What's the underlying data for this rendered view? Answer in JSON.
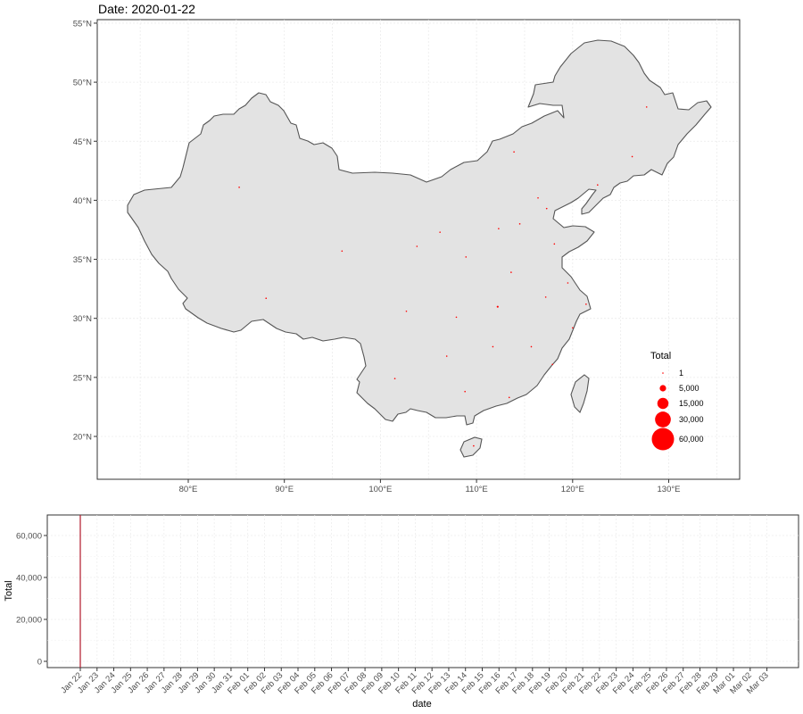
{
  "chart_data": [
    {
      "type": "scatter",
      "subtype": "bubble-map",
      "title": "Date: 2020-01-22",
      "x_ticks": [
        "80°E",
        "90°E",
        "100°E",
        "110°E",
        "120°E",
        "130°E"
      ],
      "y_ticks": [
        "20°N",
        "25°N",
        "30°N",
        "35°N",
        "40°N",
        "45°N",
        "50°N",
        "55°N"
      ],
      "xlim": [
        70,
        137
      ],
      "ylim": [
        16,
        55.5
      ],
      "grid": true,
      "legend": {
        "title": "Total",
        "position": "right",
        "items": [
          {
            "label": "1",
            "value": 1
          },
          {
            "label": "5,000",
            "value": 5000
          },
          {
            "label": "15,000",
            "value": 15000
          },
          {
            "label": "30,000",
            "value": 30000
          },
          {
            "label": "60,000",
            "value": 60000
          }
        ]
      },
      "points": [
        {
          "lon": 112.2,
          "lat": 30.98,
          "total": 444
        },
        {
          "lon": 121.4,
          "lat": 31.2,
          "total": 9
        },
        {
          "lon": 113.4,
          "lat": 23.3,
          "total": 26
        },
        {
          "lon": 120.0,
          "lat": 29.2,
          "total": 10
        },
        {
          "lon": 116.4,
          "lat": 40.2,
          "total": 14
        },
        {
          "lon": 117.3,
          "lat": 39.3,
          "total": 4
        },
        {
          "lon": 114.5,
          "lat": 38.0,
          "total": 1
        },
        {
          "lon": 112.3,
          "lat": 37.6,
          "total": 1
        },
        {
          "lon": 113.9,
          "lat": 44.1,
          "total": 1
        },
        {
          "lon": 122.6,
          "lat": 41.3,
          "total": 2
        },
        {
          "lon": 126.2,
          "lat": 43.7,
          "total": 1
        },
        {
          "lon": 127.7,
          "lat": 47.9,
          "total": 1
        },
        {
          "lon": 119.5,
          "lat": 33.0,
          "total": 1
        },
        {
          "lon": 117.2,
          "lat": 31.8,
          "total": 1
        },
        {
          "lon": 117.9,
          "lat": 26.1,
          "total": 1
        },
        {
          "lon": 115.7,
          "lat": 27.6,
          "total": 2
        },
        {
          "lon": 118.1,
          "lat": 36.3,
          "total": 2
        },
        {
          "lon": 113.6,
          "lat": 33.9,
          "total": 5
        },
        {
          "lon": 111.7,
          "lat": 27.6,
          "total": 4
        },
        {
          "lon": 108.8,
          "lat": 23.8,
          "total": 2
        },
        {
          "lon": 109.7,
          "lat": 19.2,
          "total": 4
        },
        {
          "lon": 107.9,
          "lat": 30.1,
          "total": 6
        },
        {
          "lon": 102.7,
          "lat": 30.6,
          "total": 5
        },
        {
          "lon": 106.9,
          "lat": 26.8,
          "total": 1
        },
        {
          "lon": 101.5,
          "lat": 24.9,
          "total": 1
        },
        {
          "lon": 88.1,
          "lat": 31.7,
          "total": 1
        },
        {
          "lon": 108.9,
          "lat": 35.2,
          "total": 1
        },
        {
          "lon": 103.8,
          "lat": 36.1,
          "total": 1
        },
        {
          "lon": 96.0,
          "lat": 35.7,
          "total": 1
        },
        {
          "lon": 106.2,
          "lat": 37.3,
          "total": 1
        },
        {
          "lon": 85.3,
          "lat": 41.1,
          "total": 1
        }
      ]
    },
    {
      "type": "line",
      "xlabel": "date",
      "ylabel": "Total",
      "ylim": [
        -2500,
        70000
      ],
      "y_ticks": [
        "0",
        "20,000",
        "40,000",
        "60,000"
      ],
      "y_tick_values": [
        0,
        20000,
        40000,
        60000
      ],
      "categories": [
        "Jan 22",
        "Jan 23",
        "Jan 24",
        "Jan 25",
        "Jan 26",
        "Jan 27",
        "Jan 28",
        "Jan 29",
        "Jan 30",
        "Jan 31",
        "Feb 01",
        "Feb 02",
        "Feb 03",
        "Feb 04",
        "Feb 05",
        "Feb 06",
        "Feb 07",
        "Feb 08",
        "Feb 09",
        "Feb 10",
        "Feb 11",
        "Feb 12",
        "Feb 13",
        "Feb 14",
        "Feb 15",
        "Feb 16",
        "Feb 17",
        "Feb 18",
        "Feb 19",
        "Feb 20",
        "Feb 21",
        "Feb 22",
        "Feb 23",
        "Feb 24",
        "Feb 25",
        "Feb 26",
        "Feb 27",
        "Feb 28",
        "Feb 29",
        "Mar 01",
        "Mar 02",
        "Mar 03"
      ],
      "marker_date": "Jan 22",
      "marker_color": "#b2182b",
      "grid": true
    }
  ]
}
